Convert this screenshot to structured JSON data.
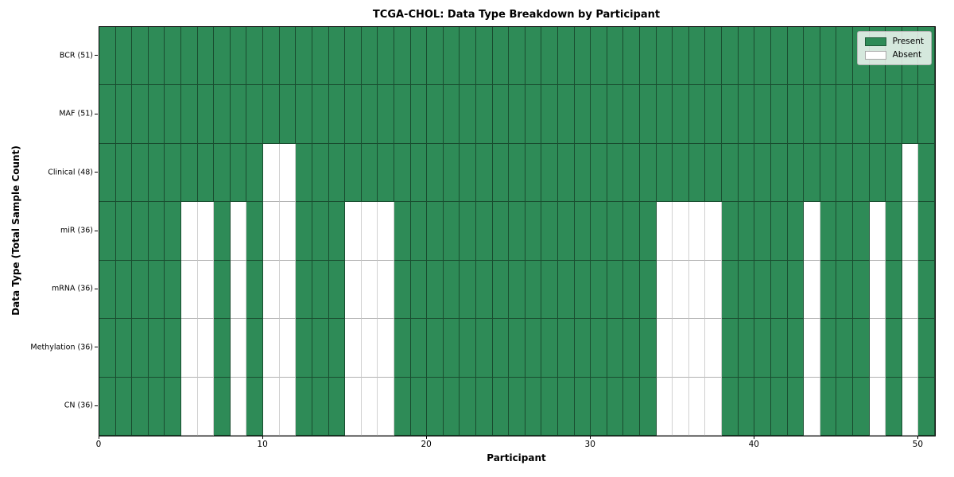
{
  "figure": {
    "title": "TCGA-CHOL: Data Type Breakdown by Participant",
    "xlabel": "Participant",
    "ylabel": "Data Type (Total Sample Count)"
  },
  "legend": {
    "items": [
      {
        "label": "Present",
        "color": "#2e8b57"
      },
      {
        "label": "Absent",
        "color": "#ffffff"
      }
    ]
  },
  "chart_data": {
    "type": "heatmap",
    "title": "TCGA-CHOL: Data Type Breakdown by Participant",
    "xlabel": "Participant",
    "ylabel": "Data Type (Total Sample Count)",
    "legend_position": "upper right",
    "grid": true,
    "n_participants": 51,
    "xlim": [
      0,
      51
    ],
    "x_ticks": [
      0,
      10,
      20,
      30,
      40,
      50
    ],
    "colors": {
      "present": "#2e8b57",
      "absent": "#ffffff"
    },
    "rows": [
      {
        "label": "BCR (51)",
        "data_type": "BCR",
        "present_count": 51,
        "absent_participants": []
      },
      {
        "label": "MAF (51)",
        "data_type": "MAF",
        "present_count": 51,
        "absent_participants": []
      },
      {
        "label": "Clinical (48)",
        "data_type": "Clinical",
        "present_count": 48,
        "absent_participants": [
          10,
          11,
          49
        ]
      },
      {
        "label": "miR (36)",
        "data_type": "miR",
        "present_count": 36,
        "absent_participants": [
          5,
          6,
          8,
          10,
          11,
          15,
          16,
          17,
          34,
          35,
          36,
          37,
          43,
          47,
          49
        ]
      },
      {
        "label": "mRNA (36)",
        "data_type": "mRNA",
        "present_count": 36,
        "absent_participants": [
          5,
          6,
          8,
          10,
          11,
          15,
          16,
          17,
          34,
          35,
          36,
          37,
          43,
          47,
          49
        ]
      },
      {
        "label": "Methylation (36)",
        "data_type": "Methylation",
        "present_count": 36,
        "absent_participants": [
          5,
          6,
          8,
          10,
          11,
          15,
          16,
          17,
          34,
          35,
          36,
          37,
          43,
          47,
          49
        ]
      },
      {
        "label": "CN (36)",
        "data_type": "CN",
        "present_count": 36,
        "absent_participants": [
          5,
          6,
          8,
          10,
          11,
          15,
          16,
          17,
          34,
          35,
          36,
          37,
          43,
          47,
          49
        ]
      }
    ]
  }
}
